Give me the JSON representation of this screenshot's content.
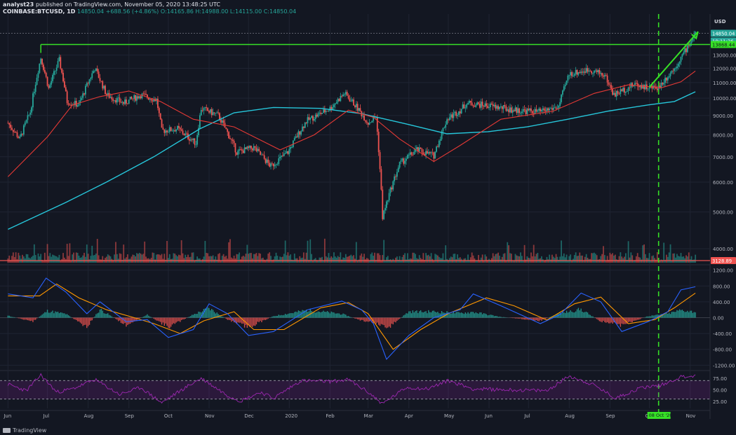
{
  "header": {
    "author": "analyst23",
    "published": "published on TradingView.com, November 05, 2020 13:48:25 UTC",
    "symbol": "COINBASE:BTCUSD, 1D",
    "last": "14850.04",
    "change": "+688.56 (+4.86%)",
    "ohlc": "O:14165.86 H:14988.00 L:14115.00 C:14850.04"
  },
  "footer": {
    "brand": "TradingView"
  },
  "colors": {
    "background": "#131722",
    "grid": "#1f2432",
    "up": "#26a69a",
    "down": "#ef5350",
    "ma_fast": "#e53935",
    "ma_slow": "#26c6da",
    "resistance": "#36e026",
    "rsi": "#9c27b0",
    "macd": "#2962ff",
    "signal": "#ff9800"
  },
  "chart_data": [
    {
      "type": "candlestick",
      "panel": "price",
      "currency": "USD",
      "y_scale": "log",
      "ylim": [
        4000,
        16000
      ],
      "y_ticks": [
        4000,
        5000,
        6000,
        7000,
        8000,
        9000,
        10000,
        11000,
        12000,
        13000
      ],
      "x_tick_labels": [
        "Jun",
        "Jul",
        "Aug",
        "Sep",
        "Oct",
        "Nov",
        "Dec",
        "2020",
        "Feb",
        "Mar",
        "Apr",
        "May",
        "Jun",
        "Jul",
        "Aug",
        "Sep",
        "Oct",
        "Nov"
      ],
      "price_path": [
        [
          "2019-06-01",
          8600
        ],
        [
          "2019-06-10",
          7800
        ],
        [
          "2019-06-18",
          9200
        ],
        [
          "2019-06-26",
          12800
        ],
        [
          "2019-07-02",
          10600
        ],
        [
          "2019-07-10",
          12600
        ],
        [
          "2019-07-16",
          9800
        ],
        [
          "2019-07-25",
          9600
        ],
        [
          "2019-08-06",
          12000
        ],
        [
          "2019-08-15",
          10200
        ],
        [
          "2019-08-28",
          9700
        ],
        [
          "2019-09-10",
          10200
        ],
        [
          "2019-09-22",
          9900
        ],
        [
          "2019-09-26",
          8200
        ],
        [
          "2019-10-08",
          8300
        ],
        [
          "2019-10-22",
          7600
        ],
        [
          "2019-10-26",
          9400
        ],
        [
          "2019-11-08",
          9000
        ],
        [
          "2019-11-22",
          7200
        ],
        [
          "2019-12-05",
          7400
        ],
        [
          "2019-12-18",
          6600
        ],
        [
          "2019-12-31",
          7200
        ],
        [
          "2020-01-14",
          8700
        ],
        [
          "2020-02-01",
          9400
        ],
        [
          "2020-02-12",
          10300
        ],
        [
          "2020-02-20",
          9600
        ],
        [
          "2020-03-01",
          8600
        ],
        [
          "2020-03-07",
          8950
        ],
        [
          "2020-03-12",
          4850
        ],
        [
          "2020-03-25",
          6700
        ],
        [
          "2020-04-07",
          7300
        ],
        [
          "2020-04-20",
          7050
        ],
        [
          "2020-04-30",
          8800
        ],
        [
          "2020-05-10",
          9300
        ],
        [
          "2020-05-15",
          9700
        ],
        [
          "2020-06-01",
          9550
        ],
        [
          "2020-06-20",
          9300
        ],
        [
          "2020-07-10",
          9200
        ],
        [
          "2020-07-24",
          9500
        ],
        [
          "2020-08-01",
          11600
        ],
        [
          "2020-08-17",
          11900
        ],
        [
          "2020-08-28",
          11500
        ],
        [
          "2020-09-04",
          10200
        ],
        [
          "2020-09-20",
          10900
        ],
        [
          "2020-10-01",
          10650
        ],
        [
          "2020-10-08",
          10700
        ],
        [
          "2020-10-20",
          12000
        ],
        [
          "2020-10-28",
          13300
        ],
        [
          "2020-11-05",
          14850
        ]
      ],
      "ma_fast": [
        [
          "2019-06-01",
          6200
        ],
        [
          "2019-07-01",
          7900
        ],
        [
          "2019-07-20",
          9600
        ],
        [
          "2019-08-10",
          10100
        ],
        [
          "2019-09-01",
          10450
        ],
        [
          "2019-09-25",
          9800
        ],
        [
          "2019-10-20",
          8800
        ],
        [
          "2019-11-20",
          8400
        ],
        [
          "2019-12-25",
          7300
        ],
        [
          "2020-01-20",
          8000
        ],
        [
          "2020-02-15",
          9300
        ],
        [
          "2020-03-05",
          8900
        ],
        [
          "2020-03-25",
          7800
        ],
        [
          "2020-04-20",
          6800
        ],
        [
          "2020-05-10",
          7500
        ],
        [
          "2020-06-10",
          8800
        ],
        [
          "2020-07-20",
          9250
        ],
        [
          "2020-08-20",
          10300
        ],
        [
          "2020-09-15",
          10850
        ],
        [
          "2020-10-10",
          10650
        ],
        [
          "2020-10-25",
          11050
        ],
        [
          "2020-11-05",
          11800
        ]
      ],
      "ma_slow": [
        [
          "2019-06-01",
          4500
        ],
        [
          "2019-07-15",
          5300
        ],
        [
          "2019-08-15",
          6000
        ],
        [
          "2019-09-20",
          7000
        ],
        [
          "2019-10-25",
          8300
        ],
        [
          "2019-11-20",
          9150
        ],
        [
          "2019-12-20",
          9450
        ],
        [
          "2020-01-25",
          9400
        ],
        [
          "2020-02-25",
          9100
        ],
        [
          "2020-03-30",
          8550
        ],
        [
          "2020-04-30",
          8050
        ],
        [
          "2020-05-31",
          8150
        ],
        [
          "2020-06-30",
          8400
        ],
        [
          "2020-07-31",
          8800
        ],
        [
          "2020-08-31",
          9250
        ],
        [
          "2020-09-30",
          9600
        ],
        [
          "2020-10-20",
          9800
        ],
        [
          "2020-11-05",
          10400
        ]
      ],
      "horizontal_levels": {
        "resistance": 13868.44,
        "dotted": 14850.04
      },
      "price_labels": [
        {
          "text": "14850.04",
          "kind": "last"
        },
        {
          "text": "10:11:36",
          "kind": "countdown"
        },
        {
          "text": "13868.44",
          "kind": "resistance"
        }
      ],
      "vertical_marker": {
        "date": "2020-10-08",
        "label": "08 Oct '20"
      },
      "arrow": {
        "from": [
          "2020-10-01",
          10700
        ],
        "to": [
          "2020-11-07",
          15000
        ]
      },
      "volume": {
        "label": "3128.89",
        "level": 3128.89
      }
    },
    {
      "type": "histogram+line",
      "panel": "macd",
      "ylim": [
        -1300,
        1300
      ],
      "y_ticks": [
        1200,
        800,
        400,
        0,
        -400,
        -800,
        -1200
      ],
      "y_tick_labels": [
        "1200.00",
        "800.00",
        "400.00",
        "0.00",
        "-400.00",
        "-800.00",
        "-1200.00"
      ],
      "macd_line": [
        [
          "2019-06-01",
          600
        ],
        [
          "2019-06-20",
          500
        ],
        [
          "2019-06-30",
          1000
        ],
        [
          "2019-07-15",
          650
        ],
        [
          "2019-07-31",
          100
        ],
        [
          "2019-08-10",
          400
        ],
        [
          "2019-08-30",
          -100
        ],
        [
          "2019-09-15",
          -50
        ],
        [
          "2019-10-01",
          -500
        ],
        [
          "2019-10-20",
          -300
        ],
        [
          "2019-11-01",
          350
        ],
        [
          "2019-11-15",
          100
        ],
        [
          "2019-12-01",
          -450
        ],
        [
          "2019-12-20",
          -350
        ],
        [
          "2020-01-15",
          200
        ],
        [
          "2020-02-10",
          420
        ],
        [
          "2020-02-25",
          200
        ],
        [
          "2020-03-05",
          -150
        ],
        [
          "2020-03-15",
          -1050
        ],
        [
          "2020-04-01",
          -450
        ],
        [
          "2020-04-20",
          0
        ],
        [
          "2020-05-10",
          200
        ],
        [
          "2020-05-20",
          600
        ],
        [
          "2020-06-10",
          300
        ],
        [
          "2020-07-10",
          -150
        ],
        [
          "2020-07-25",
          80
        ],
        [
          "2020-08-10",
          620
        ],
        [
          "2020-08-25",
          400
        ],
        [
          "2020-09-10",
          -350
        ],
        [
          "2020-09-30",
          -100
        ],
        [
          "2020-10-15",
          150
        ],
        [
          "2020-10-25",
          700
        ],
        [
          "2020-11-05",
          780
        ]
      ],
      "signal_line": [
        [
          "2019-06-01",
          550
        ],
        [
          "2019-06-25",
          550
        ],
        [
          "2019-07-08",
          850
        ],
        [
          "2019-07-25",
          500
        ],
        [
          "2019-08-15",
          200
        ],
        [
          "2019-09-05",
          0
        ],
        [
          "2019-09-20",
          -150
        ],
        [
          "2019-10-10",
          -400
        ],
        [
          "2019-10-28",
          -80
        ],
        [
          "2019-11-20",
          150
        ],
        [
          "2019-12-05",
          -300
        ],
        [
          "2019-12-28",
          -300
        ],
        [
          "2020-01-25",
          250
        ],
        [
          "2020-02-15",
          380
        ],
        [
          "2020-03-01",
          100
        ],
        [
          "2020-03-20",
          -800
        ],
        [
          "2020-04-10",
          -300
        ],
        [
          "2020-05-01",
          100
        ],
        [
          "2020-05-30",
          500
        ],
        [
          "2020-06-20",
          300
        ],
        [
          "2020-07-15",
          -60
        ],
        [
          "2020-08-05",
          350
        ],
        [
          "2020-08-25",
          520
        ],
        [
          "2020-09-15",
          -150
        ],
        [
          "2020-10-05",
          -50
        ],
        [
          "2020-10-20",
          250
        ],
        [
          "2020-11-05",
          620
        ]
      ],
      "histogram": [
        [
          "2019-06-01",
          50
        ],
        [
          "2019-06-20",
          -100
        ],
        [
          "2019-07-01",
          180
        ],
        [
          "2019-07-15",
          100
        ],
        [
          "2019-07-31",
          -250
        ],
        [
          "2019-08-10",
          220
        ],
        [
          "2019-08-30",
          -200
        ],
        [
          "2019-09-15",
          80
        ],
        [
          "2019-10-01",
          -250
        ],
        [
          "2019-10-20",
          80
        ],
        [
          "2019-11-01",
          250
        ],
        [
          "2019-11-15",
          -50
        ],
        [
          "2019-12-01",
          -250
        ],
        [
          "2019-12-20",
          40
        ],
        [
          "2020-01-15",
          200
        ],
        [
          "2020-02-10",
          100
        ],
        [
          "2020-02-25",
          -80
        ],
        [
          "2020-03-05",
          -120
        ],
        [
          "2020-03-15",
          -300
        ],
        [
          "2020-04-01",
          160
        ],
        [
          "2020-04-20",
          160
        ],
        [
          "2020-05-10",
          120
        ],
        [
          "2020-05-20",
          150
        ],
        [
          "2020-06-10",
          20
        ],
        [
          "2020-07-10",
          -80
        ],
        [
          "2020-07-25",
          120
        ],
        [
          "2020-08-10",
          220
        ],
        [
          "2020-08-25",
          -100
        ],
        [
          "2020-09-10",
          -200
        ],
        [
          "2020-09-30",
          40
        ],
        [
          "2020-10-15",
          100
        ],
        [
          "2020-10-25",
          200
        ],
        [
          "2020-11-05",
          150
        ]
      ]
    },
    {
      "type": "line",
      "panel": "rsi",
      "ylim": [
        10,
        90
      ],
      "y_ticks": [
        75,
        50,
        25
      ],
      "y_tick_labels": [
        "75.00",
        "50.00",
        "25.00"
      ],
      "band": [
        30,
        70
      ],
      "values": [
        [
          "2019-06-01",
          62
        ],
        [
          "2019-06-15",
          48
        ],
        [
          "2019-06-26",
          82
        ],
        [
          "2019-07-08",
          45
        ],
        [
          "2019-07-20",
          52
        ],
        [
          "2019-08-06",
          72
        ],
        [
          "2019-08-25",
          40
        ],
        [
          "2019-09-10",
          55
        ],
        [
          "2019-09-26",
          22
        ],
        [
          "2019-10-10",
          48
        ],
        [
          "2019-10-26",
          75
        ],
        [
          "2019-11-15",
          38
        ],
        [
          "2019-11-25",
          26
        ],
        [
          "2019-12-10",
          45
        ],
        [
          "2019-12-20",
          32
        ],
        [
          "2020-01-10",
          70
        ],
        [
          "2020-02-01",
          68
        ],
        [
          "2020-02-15",
          72
        ],
        [
          "2020-03-01",
          45
        ],
        [
          "2020-03-12",
          20
        ],
        [
          "2020-03-30",
          55
        ],
        [
          "2020-04-15",
          52
        ],
        [
          "2020-05-01",
          70
        ],
        [
          "2020-05-20",
          52
        ],
        [
          "2020-06-15",
          50
        ],
        [
          "2020-07-15",
          48
        ],
        [
          "2020-08-01",
          80
        ],
        [
          "2020-08-20",
          60
        ],
        [
          "2020-09-05",
          32
        ],
        [
          "2020-09-25",
          55
        ],
        [
          "2020-10-10",
          60
        ],
        [
          "2020-10-25",
          78
        ],
        [
          "2020-11-05",
          80
        ]
      ]
    }
  ]
}
